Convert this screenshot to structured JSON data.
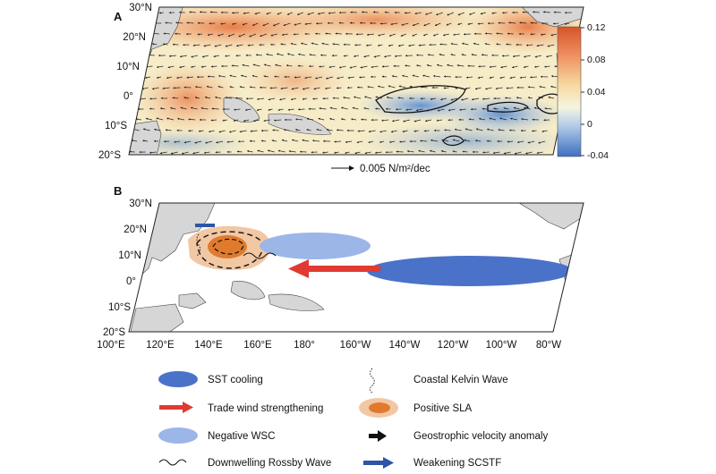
{
  "panel_a": {
    "letter": "A",
    "lat_labels": [
      "30°N",
      "20°N",
      "10°N",
      "0°",
      "10°S",
      "20°S"
    ],
    "colorbar": {
      "tick_labels": [
        "0.12",
        "0.08",
        "0.04",
        "0",
        "-0.04"
      ],
      "range": [
        -0.04,
        0.12
      ],
      "colors": [
        "#3d6fc2",
        "#f5f5e0",
        "#d8542a"
      ]
    },
    "reference_vector_label": "0.005 N/m²/dec"
  },
  "panel_b": {
    "letter": "B",
    "lat_labels": [
      "30°N",
      "20°N",
      "10°N",
      "0°",
      "10°S",
      "20°S"
    ],
    "lon_labels": [
      "100°E",
      "120°E",
      "140°E",
      "160°E",
      "180°",
      "160°W",
      "140°W",
      "120°W",
      "100°W",
      "80°W"
    ]
  },
  "legend": {
    "sst_cooling": "SST cooling",
    "trade_wind": "Trade wind strengthening",
    "negative_wsc": "Negative WSC",
    "rossby_wave": "Downwelling Rossby Wave",
    "kelvin_wave": "Coastal Kelvin Wave",
    "positive_sla": "Positive SLA",
    "geostrophic": "Geostrophic velocity anomaly",
    "scstf": "Weakening SCSTF"
  },
  "colors": {
    "sst_cooling": "#4a72c9",
    "trade_wind": "#e03a33",
    "negative_wsc": "#9db6e8",
    "sla_outer": "#f1c7a4",
    "sla_inner": "#e07b2d",
    "scstf": "#2e55a8",
    "land": "#d6d6d6"
  }
}
